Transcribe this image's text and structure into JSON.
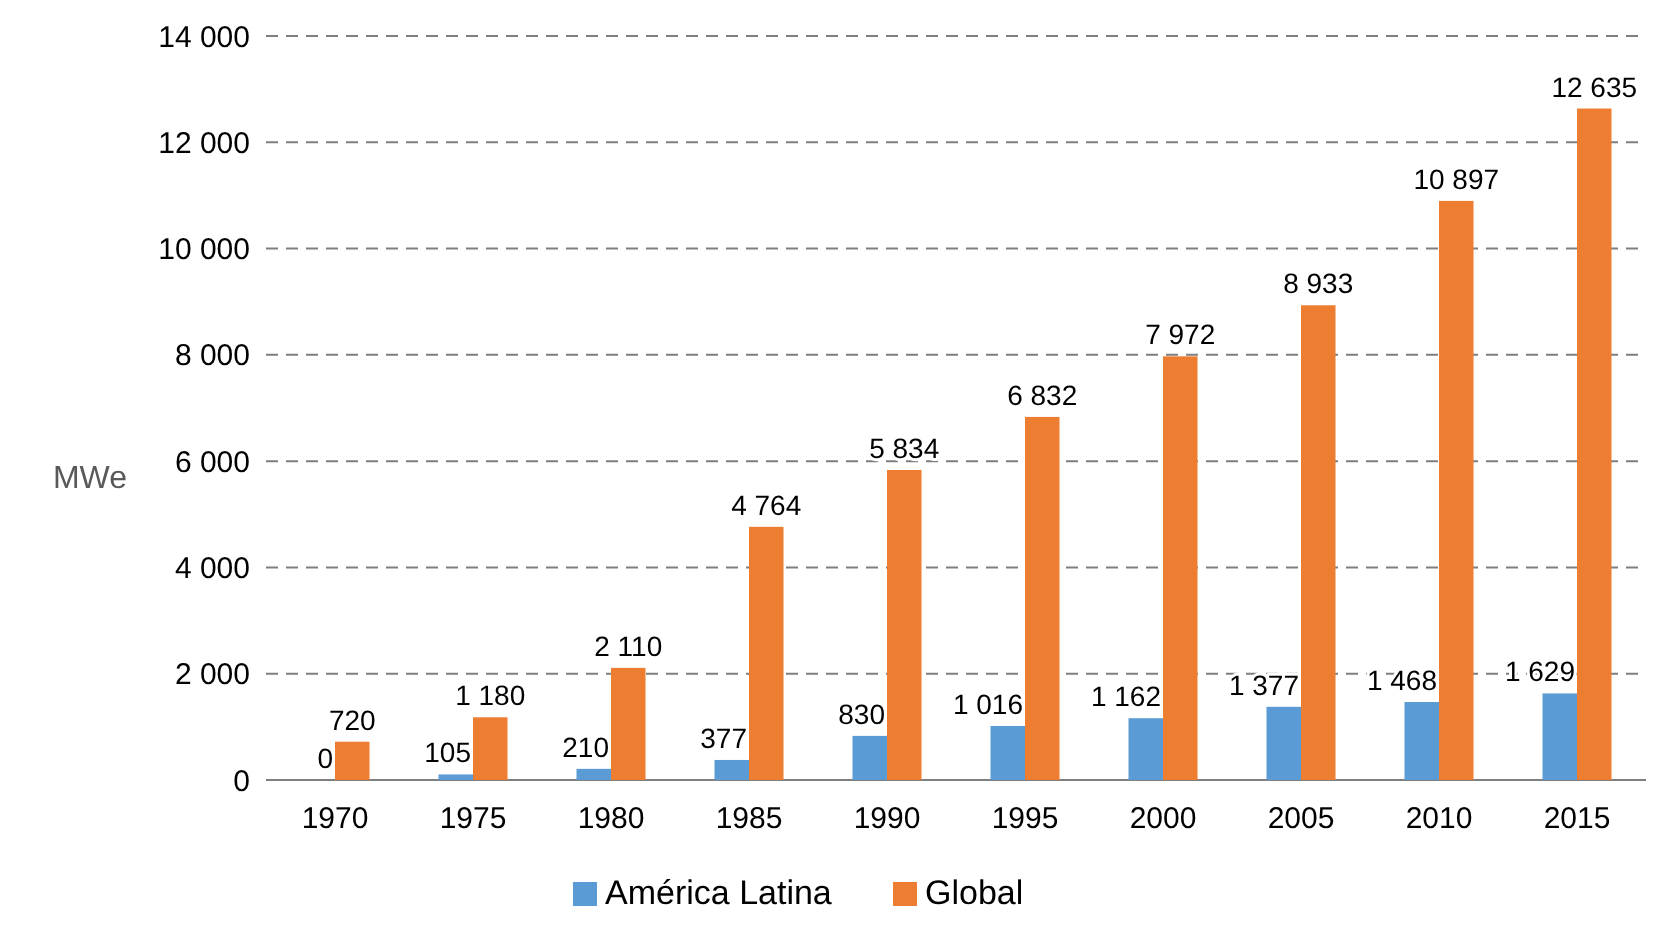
{
  "chart_data": {
    "type": "bar",
    "ylabel": "MWe",
    "categories": [
      "1970",
      "1975",
      "1980",
      "1985",
      "1990",
      "1995",
      "2000",
      "2005",
      "2010",
      "2015"
    ],
    "series": [
      {
        "name": "América Latina",
        "color": "#5b9bd5",
        "values": [
          0,
          105,
          210,
          377,
          830,
          1016,
          1162,
          1377,
          1468,
          1629
        ],
        "value_labels": [
          "0",
          "105",
          "210",
          "377",
          "830",
          "1 016",
          "1 162",
          "1 377",
          "1 468",
          "1 629"
        ]
      },
      {
        "name": "Global",
        "color": "#ed7d31",
        "values": [
          720,
          1180,
          2110,
          4764,
          5834,
          6832,
          7972,
          8933,
          10897,
          12635
        ],
        "value_labels": [
          "720",
          "1 180",
          "2 110",
          "4 764",
          "5 834",
          "6 832",
          "7 972",
          "8 933",
          "10 897",
          "12 635"
        ]
      }
    ],
    "ylim": [
      0,
      14000
    ],
    "yticks": [
      0,
      {
        "value": 2000,
        "label": "2 000"
      },
      {
        "value": 4000,
        "label": "4 000"
      },
      {
        "value": 6000,
        "label": "6 000"
      },
      {
        "value": 8000,
        "label": "8 000"
      },
      {
        "value": 10000,
        "label": "10 000"
      },
      {
        "value": 12000,
        "label": "12 000"
      },
      {
        "value": 14000,
        "label": "14 000"
      }
    ],
    "grid": "y",
    "legend": "bottom"
  }
}
